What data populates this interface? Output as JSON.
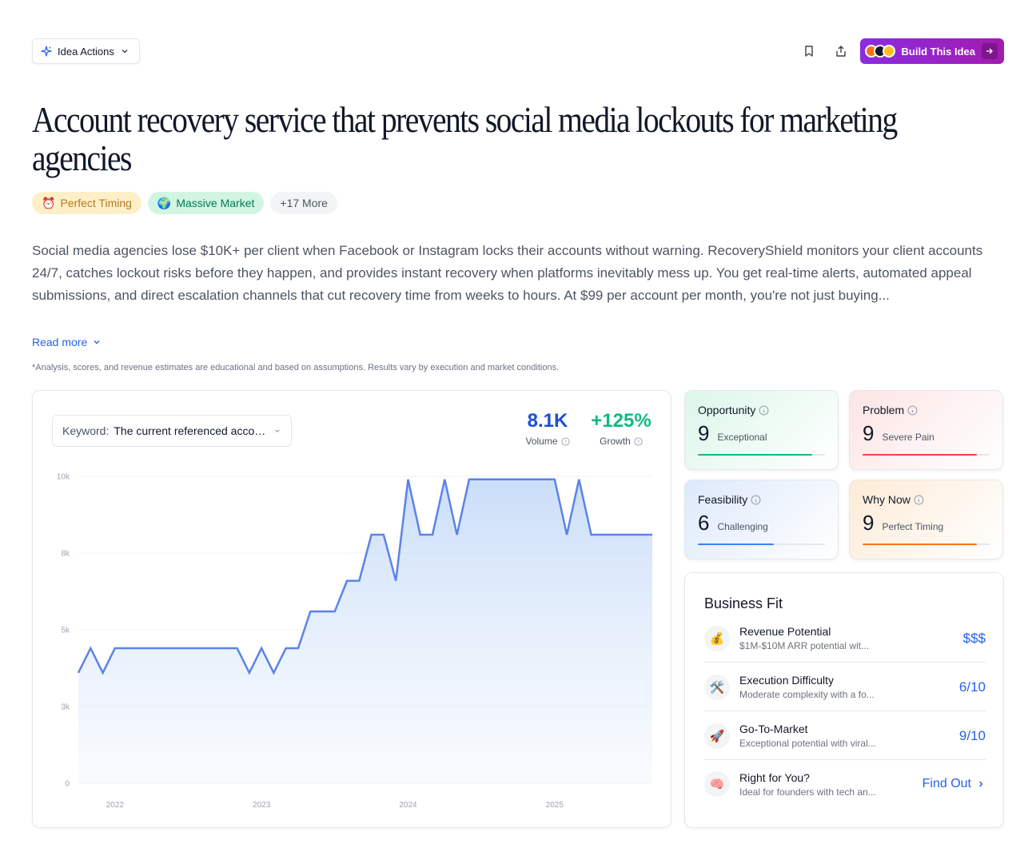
{
  "header": {
    "idea_actions_label": "Idea Actions",
    "build_label": "Build This Idea"
  },
  "title": "Account recovery service that prevents social media lockouts for marketing agencies",
  "tags": [
    {
      "emoji": "⏰",
      "label": "Perfect Timing"
    },
    {
      "emoji": "🌍",
      "label": "Massive Market"
    },
    {
      "label": "+17 More"
    }
  ],
  "description": "Social media agencies lose $10K+ per client when Facebook or Instagram locks their accounts without warning. RecoveryShield monitors your client accounts 24/7, catches lockout risks before they happen, and provides instant recovery when platforms inevitably mess up. You get real-time alerts, automated appeal submissions, and direct escalation channels that cut recovery time from weeks to hours. At $99 per account per month, you're not just buying...",
  "read_more": "Read more",
  "disclaimer": "*Analysis, scores, and revenue estimates are educational and based on assumptions. Results vary by execution and market conditions.",
  "keyword": {
    "label": "Keyword:",
    "value": "The current referenced account recovery"
  },
  "metrics": {
    "volume": {
      "value": "8.1K",
      "label": "Volume",
      "color": "#1d4ed8"
    },
    "growth": {
      "value": "+125%",
      "label": "Growth",
      "color": "#10b981"
    }
  },
  "chart_data": {
    "type": "area",
    "color": "#5b83e8",
    "y_ticks": [
      "0",
      "3k",
      "5k",
      "8k",
      "10k"
    ],
    "ylim": [
      0,
      10000
    ],
    "x_ticks": [
      "2022",
      "2023",
      "2024",
      "2025"
    ],
    "x": [
      "2021-10",
      "2021-11",
      "2021-12",
      "2022-01",
      "2022-02",
      "2022-03",
      "2022-04",
      "2022-05",
      "2022-06",
      "2022-07",
      "2022-08",
      "2022-09",
      "2022-10",
      "2022-11",
      "2022-12",
      "2023-01",
      "2023-02",
      "2023-03",
      "2023-04",
      "2023-05",
      "2023-06",
      "2023-07",
      "2023-08",
      "2023-09",
      "2023-10",
      "2023-11",
      "2023-12",
      "2024-01",
      "2024-02",
      "2024-03",
      "2024-04",
      "2024-05",
      "2024-06",
      "2024-07",
      "2024-08",
      "2024-09",
      "2024-10",
      "2024-11",
      "2024-12",
      "2025-01",
      "2025-02",
      "2025-03",
      "2025-04",
      "2025-05",
      "2025-06",
      "2025-07",
      "2025-08",
      "2025-09"
    ],
    "values": [
      3600,
      4400,
      3600,
      4400,
      4400,
      4400,
      4400,
      4400,
      4400,
      4400,
      4400,
      4400,
      4400,
      4400,
      3600,
      4400,
      3600,
      4400,
      4400,
      5600,
      5600,
      5600,
      6600,
      6600,
      8100,
      8100,
      6600,
      9900,
      8100,
      8100,
      9900,
      8100,
      9900,
      9900,
      9900,
      9900,
      9900,
      9900,
      9900,
      9900,
      8100,
      9900,
      8100,
      8100,
      8100,
      8100,
      8100,
      8100
    ]
  },
  "scores": {
    "opportunity": {
      "name": "Opportunity",
      "value": "9",
      "desc": "Exceptional",
      "fraction": 0.9,
      "color": "#10b981"
    },
    "problem": {
      "name": "Problem",
      "value": "9",
      "desc": "Severe Pain",
      "fraction": 0.9,
      "color": "#ef4444"
    },
    "feasibility": {
      "name": "Feasibility",
      "value": "6",
      "desc": "Challenging",
      "fraction": 0.6,
      "color": "#3b82f6"
    },
    "why_now": {
      "name": "Why Now",
      "value": "9",
      "desc": "Perfect Timing",
      "fraction": 0.9,
      "color": "#f97316"
    }
  },
  "business_fit": {
    "title": "Business Fit",
    "rows": [
      {
        "emoji": "💰",
        "label": "Revenue Potential",
        "sub": "$1M-$10M ARR potential wit...",
        "value": "$$$"
      },
      {
        "emoji": "🛠️",
        "label": "Execution Difficulty",
        "sub": "Moderate complexity with a fo...",
        "value": "6/10"
      },
      {
        "emoji": "🚀",
        "label": "Go-To-Market",
        "sub": "Exceptional potential with viral...",
        "value": "9/10"
      },
      {
        "emoji": "🧠",
        "label": "Right for You?",
        "sub": "Ideal for founders with tech an...",
        "value": "Find Out"
      }
    ]
  }
}
